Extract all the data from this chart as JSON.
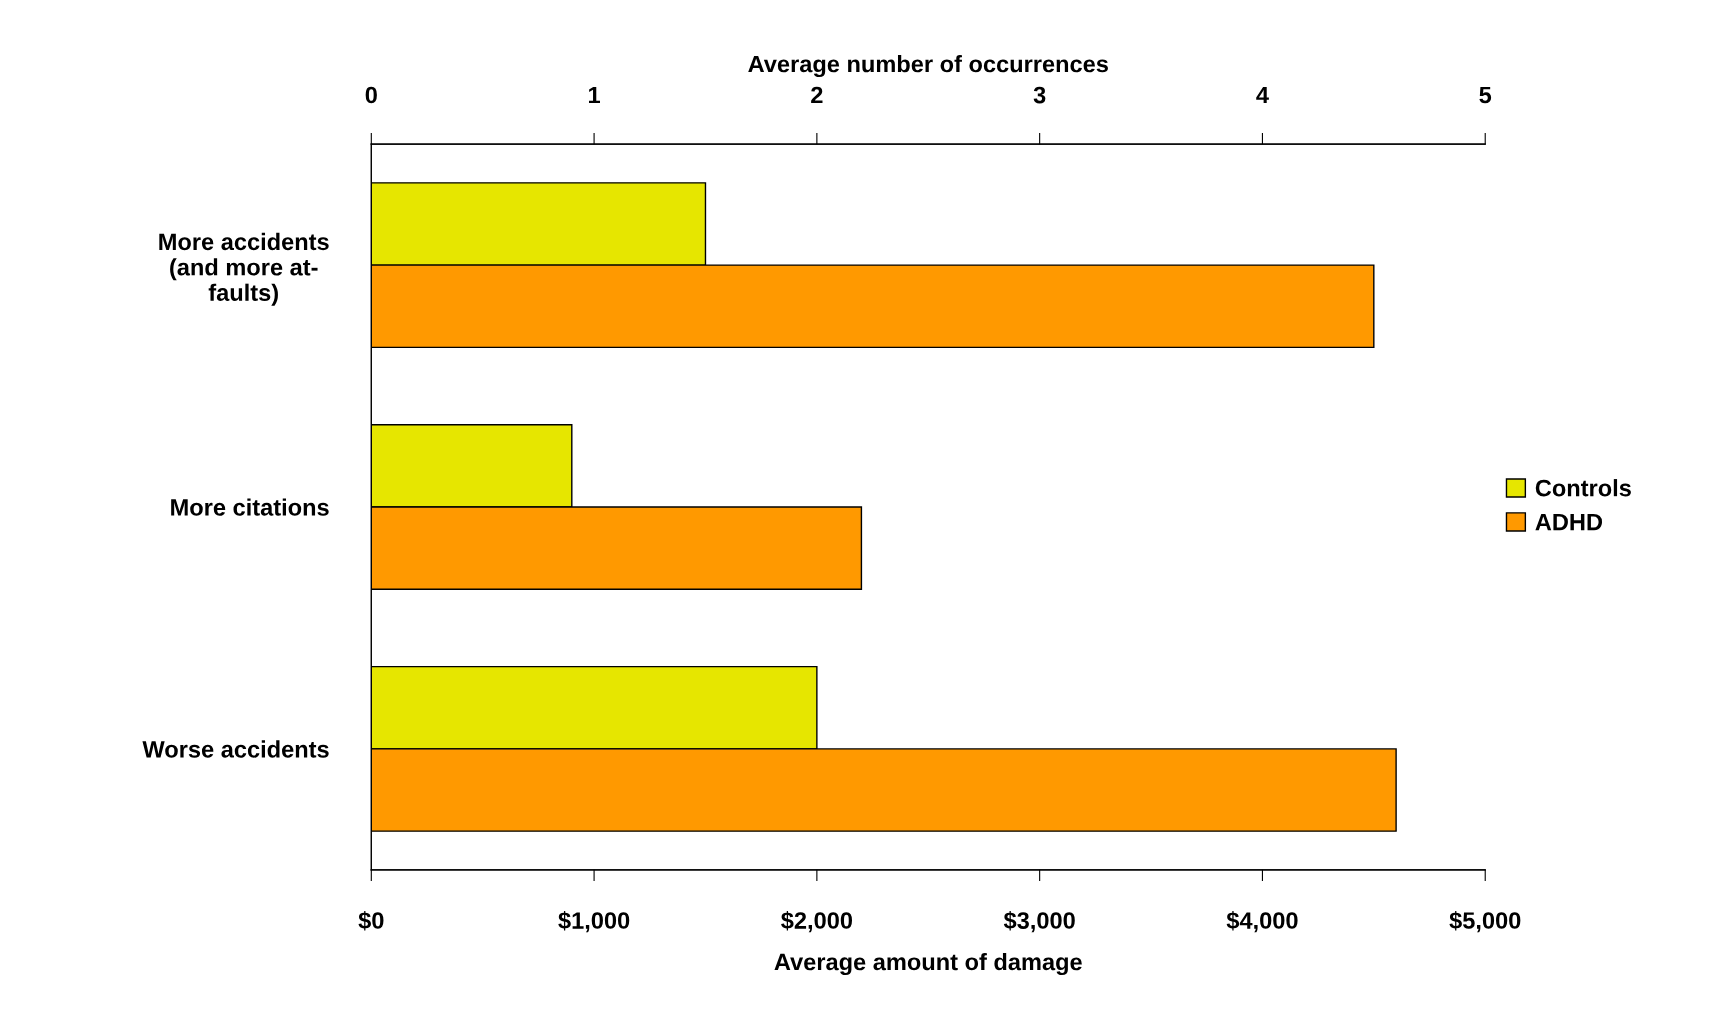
{
  "chart_data": {
    "type": "bar",
    "orientation": "horizontal",
    "categories": [
      "More accidents\n(and more at-\nfaults)",
      "More citations",
      "Worse accidents"
    ],
    "series": [
      {
        "name": "Controls",
        "color": "#e6e600",
        "values": [
          1500,
          900,
          2000
        ]
      },
      {
        "name": "ADHD",
        "color": "#ff9900",
        "values": [
          4500,
          2200,
          4600
        ]
      }
    ],
    "xlabel": "Average amount of damage",
    "x2label": "Average number of occurrences",
    "xlim": [
      0,
      5000
    ],
    "xticks": [
      {
        "value": 0,
        "label": "$0"
      },
      {
        "value": 1000,
        "label": "$1,000"
      },
      {
        "value": 2000,
        "label": "$2,000"
      },
      {
        "value": 3000,
        "label": "$3,000"
      },
      {
        "value": 4000,
        "label": "$4,000"
      },
      {
        "value": 5000,
        "label": "$5,000"
      }
    ],
    "x2lim": [
      0,
      5
    ],
    "x2ticks": [
      0,
      1,
      2,
      3,
      4,
      5
    ],
    "legend": "right",
    "grid": false
  }
}
